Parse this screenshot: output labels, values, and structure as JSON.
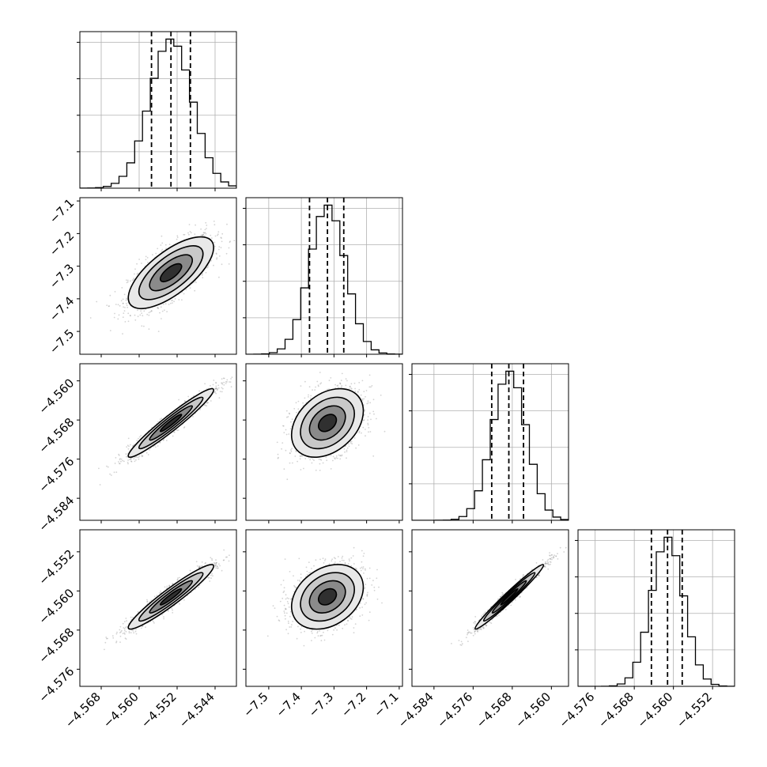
{
  "chart_data": {
    "type": "corner",
    "parameters": [
      {
        "ticks": [
          -4.568,
          -4.56,
          -4.552,
          -4.544
        ],
        "tick_labels": [
          "−4.568",
          "−4.560",
          "−4.552",
          "−4.544"
        ],
        "range": [
          -4.5725,
          -4.5395
        ],
        "mean": -4.5533,
        "sd": 0.0045,
        "quantiles": [
          -4.5574,
          -4.5533,
          -4.5492
        ]
      },
      {
        "ticks": [
          -7.5,
          -7.4,
          -7.3,
          -7.2,
          -7.1
        ],
        "tick_labels": [
          "−7.5",
          "−7.4",
          "−7.3",
          "−7.2",
          "−7.1"
        ],
        "range": [
          -7.57,
          -7.09
        ],
        "mean": -7.32,
        "sd": 0.055,
        "quantiles": [
          -7.375,
          -7.32,
          -7.27
        ]
      },
      {
        "ticks": [
          -4.584,
          -4.576,
          -4.568,
          -4.56
        ],
        "tick_labels": [
          "−4.584",
          "−4.576",
          "−4.568",
          "−4.560"
        ],
        "range": [
          -4.5885,
          -4.5565
        ],
        "mean": -4.5686,
        "sd": 0.0035,
        "quantiles": [
          -4.5722,
          -4.5687,
          -4.5657
        ]
      },
      {
        "ticks": [
          -4.576,
          -4.568,
          -4.56,
          -4.552
        ],
        "tick_labels": [
          "−4.576",
          "−4.568",
          "−4.560",
          "−4.552"
        ],
        "range": [
          -4.5795,
          -4.5475
        ],
        "mean": -4.5612,
        "sd": 0.0033,
        "quantiles": [
          -4.5645,
          -4.5612,
          -4.5582
        ]
      }
    ],
    "correlations": {
      "1-0": 0.7,
      "2-0": 0.96,
      "2-1": 0.35,
      "3-0": 0.95,
      "3-1": 0.3,
      "3-2": 0.98
    },
    "histogram_bins": 20,
    "contour_levels": [
      0.5,
      1.0,
      1.5,
      2.0
    ],
    "scatter_color": "#808080",
    "contour_color": "#000000",
    "grid": true
  }
}
